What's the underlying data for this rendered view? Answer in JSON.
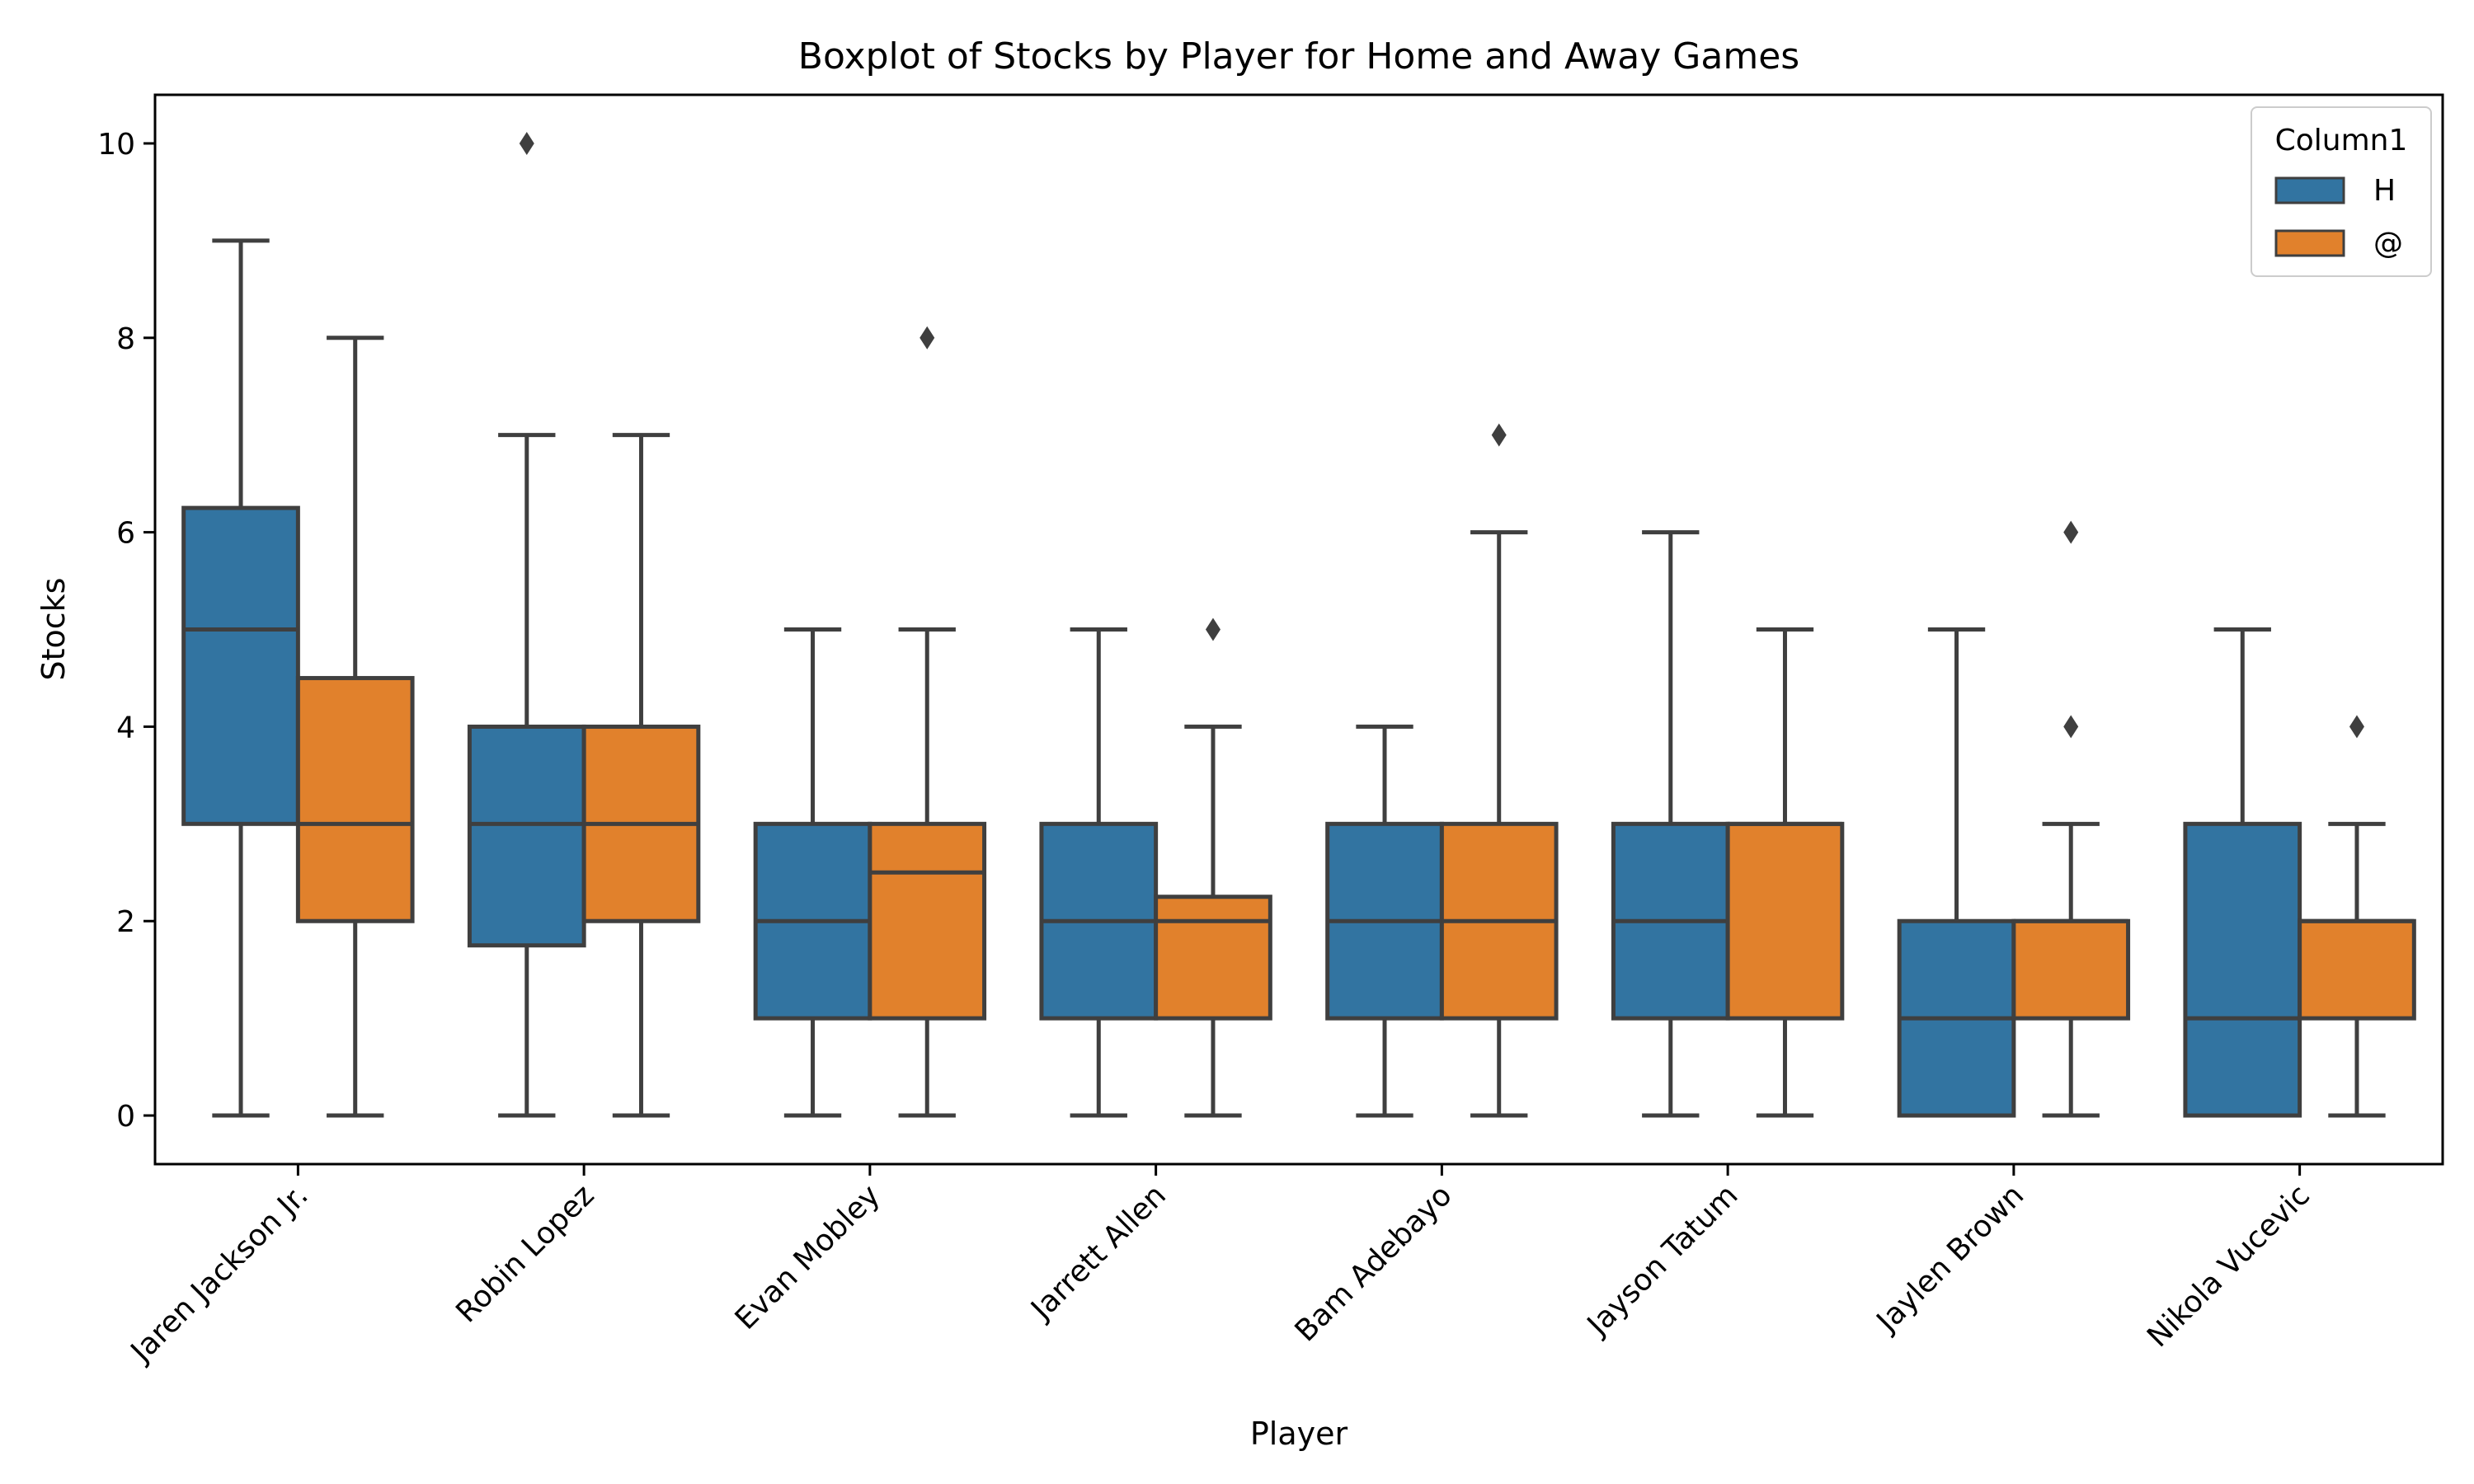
{
  "chart_data": {
    "type": "boxplot",
    "title": "Boxplot of Stocks by Player for Home and Away Games",
    "xlabel": "Player",
    "ylabel": "Stocks",
    "ylim": [
      -0.5,
      10.5
    ],
    "yticks": [
      0,
      2,
      4,
      6,
      8,
      10
    ],
    "grid": false,
    "legend": {
      "title": "Column1",
      "position": "top-right",
      "entries": [
        {
          "label": "H",
          "color": "#3274a1"
        },
        {
          "label": "@",
          "color": "#e1812c"
        }
      ]
    },
    "categories": [
      "Jaren Jackson Jr.",
      "Robin Lopez",
      "Evan Mobley",
      "Jarrett Allen",
      "Bam Adebayo",
      "Jayson Tatum",
      "Jaylen Brown",
      "Nikola Vucevic"
    ],
    "series": [
      {
        "name": "H",
        "color": "#3274a1",
        "boxes": [
          {
            "whislo": 0,
            "q1": 3,
            "med": 5,
            "q3": 6.25,
            "whishi": 9,
            "fliers": []
          },
          {
            "whislo": 0,
            "q1": 1.75,
            "med": 3,
            "q3": 4,
            "whishi": 7,
            "fliers": [
              10
            ]
          },
          {
            "whislo": 0,
            "q1": 1,
            "med": 2,
            "q3": 3,
            "whishi": 5,
            "fliers": []
          },
          {
            "whislo": 0,
            "q1": 1,
            "med": 2,
            "q3": 3,
            "whishi": 5,
            "fliers": []
          },
          {
            "whislo": 0,
            "q1": 1,
            "med": 2,
            "q3": 3,
            "whishi": 4,
            "fliers": []
          },
          {
            "whislo": 0,
            "q1": 1,
            "med": 2,
            "q3": 3,
            "whishi": 6,
            "fliers": []
          },
          {
            "whislo": 0,
            "q1": 0,
            "med": 1,
            "q3": 2,
            "whishi": 5,
            "fliers": []
          },
          {
            "whislo": 0,
            "q1": 0,
            "med": 1,
            "q3": 3,
            "whishi": 5,
            "fliers": []
          }
        ]
      },
      {
        "name": "@",
        "color": "#e1812c",
        "boxes": [
          {
            "whislo": 0,
            "q1": 2,
            "med": 3,
            "q3": 4.5,
            "whishi": 8,
            "fliers": []
          },
          {
            "whislo": 0,
            "q1": 2,
            "med": 3,
            "q3": 4,
            "whishi": 7,
            "fliers": []
          },
          {
            "whislo": 0,
            "q1": 1,
            "med": 2.5,
            "q3": 3,
            "whishi": 5,
            "fliers": [
              8
            ]
          },
          {
            "whislo": 0,
            "q1": 1,
            "med": 2,
            "q3": 2.25,
            "whishi": 4,
            "fliers": [
              5
            ]
          },
          {
            "whislo": 0,
            "q1": 1,
            "med": 2,
            "q3": 3,
            "whishi": 6,
            "fliers": [
              7
            ]
          },
          {
            "whislo": 0,
            "q1": 1,
            "med": 3,
            "q3": 3,
            "whishi": 5,
            "fliers": []
          },
          {
            "whislo": 0,
            "q1": 1,
            "med": 2,
            "q3": 2,
            "whishi": 3,
            "fliers": [
              4,
              6
            ]
          },
          {
            "whislo": 0,
            "q1": 1,
            "med": 2,
            "q3": 2,
            "whishi": 3,
            "fliers": [
              4
            ]
          }
        ]
      }
    ]
  }
}
